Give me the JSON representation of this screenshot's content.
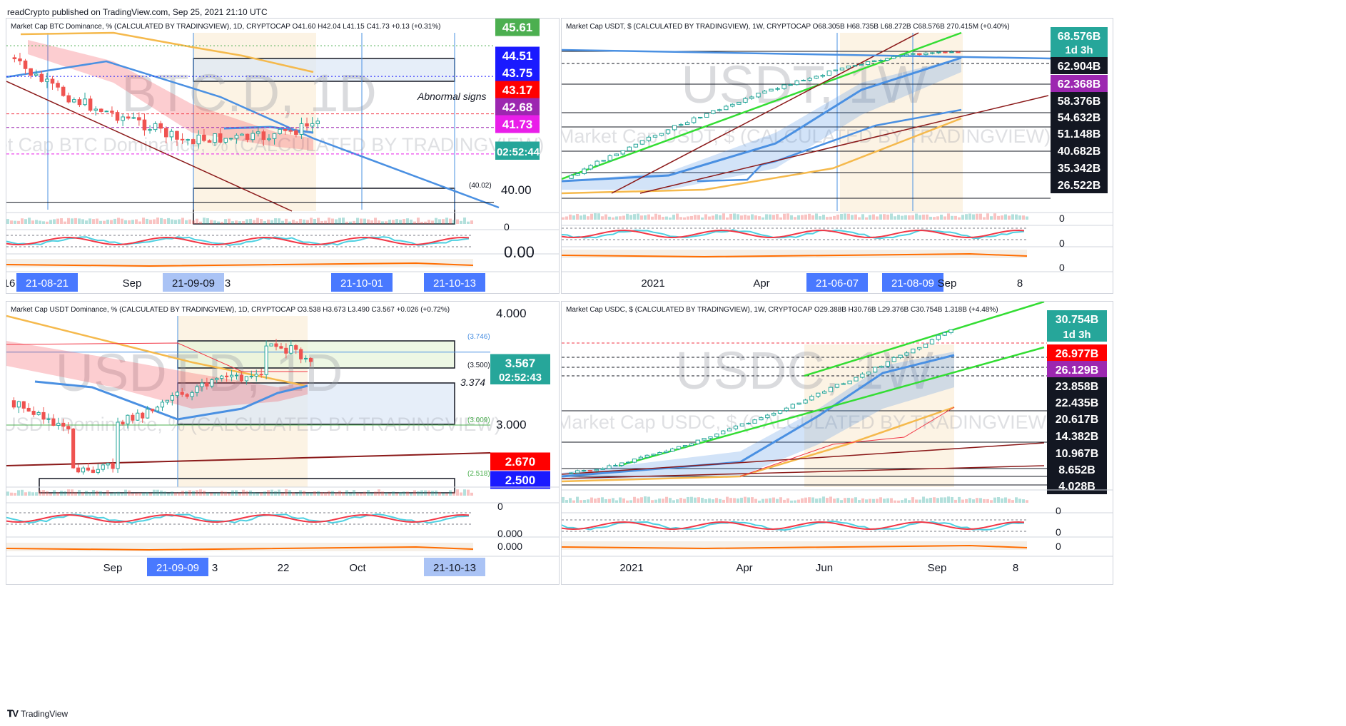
{
  "header": "readCrypto published on TradingView.com, Sep 25, 2021 21:10 UTC",
  "footer": "TradingView",
  "colors": {
    "up": "#26a69a",
    "down": "#ef5350",
    "blue": "#4a90e2",
    "orange": "#f5b94c",
    "red": "#f23645",
    "green": "#33dd33",
    "darkred": "#8b1a1a"
  },
  "chart_data": [
    {
      "id": "btcd",
      "type": "candlestick",
      "title": "Market Cap BTC Dominance, % (CALCULATED BY TRADINGVIEW), 1D, CRYPTOCAP",
      "ohlc_text": "O41.60 H42.04 L41.15 C41.73 +0.13 (+0.31%)",
      "watermark": "BTC.D, 1D",
      "watermark_sub": "Market Cap BTC Dominance, % (CALCULATED BY TRADINGVIEW)",
      "price_labels": [
        {
          "text": "45.61",
          "bg": "#4caf50",
          "fg": "#ffffff",
          "value": 45.61
        },
        {
          "text": "44.51",
          "bg": "#1a1aff",
          "fg": "#ffffff",
          "value": 44.51
        },
        {
          "text": "43.75",
          "bg": "#1a1aff",
          "fg": "#ffffff",
          "value": 43.75
        },
        {
          "text": "43.17",
          "bg": "#ff0000",
          "fg": "#ffffff",
          "value": 43.17
        },
        {
          "text": "42.68",
          "bg": "#9c27b0",
          "fg": "#ffffff",
          "value": 42.68
        },
        {
          "text": "41.73",
          "bg": "#e91ee9",
          "fg": "#ffffff",
          "value": 41.73
        },
        {
          "text": "41.73",
          "bg": "#26a69a",
          "fg": "#ffffff",
          "value": 41.73
        },
        {
          "text": "40.00",
          "bg": "",
          "fg": "#131722",
          "value": 40.0
        }
      ],
      "countdown": "02:52:44",
      "annotations": [
        "Abnormal signs",
        "(40.02)"
      ],
      "ind_labels": [
        "0",
        "0.00"
      ],
      "x_labels": [
        {
          "text": "16",
          "hl": false
        },
        {
          "text": "21-08-21",
          "hl": "dark"
        },
        {
          "text": "Sep",
          "hl": false
        },
        {
          "text": "21-09-09",
          "hl": "light"
        },
        {
          "text": "3",
          "hl": false
        },
        {
          "text": "21-10-01",
          "hl": "dark"
        },
        {
          "text": "21-10-13",
          "hl": "dark"
        }
      ],
      "ylim": [
        39.3,
        46.2
      ]
    },
    {
      "id": "usdt",
      "type": "candlestick",
      "title": "Market Cap USDT, $ (CALCULATED BY TRADINGVIEW), 1W, CRYPTOCAP",
      "ohlc_text": "O68.305B H68.735B L68.272B C68.576B 270.415M (+0.40%)",
      "watermark": "USDT, 1W",
      "watermark_sub": "Market Cap USDT, $ (CALCULATED BY TRADINGVIEW)",
      "price_labels": [
        {
          "text": "68.576B",
          "bg": "#26a69a",
          "fg": "#ffffff",
          "value": 68.576
        },
        {
          "text": "62.904B",
          "bg": "#131722",
          "fg": "#ffffff",
          "value": 62.904
        },
        {
          "text": "62.368B",
          "bg": "#9c27b0",
          "fg": "#ffffff",
          "value": 62.368
        },
        {
          "text": "58.376B",
          "bg": "#131722",
          "fg": "#ffffff",
          "value": 58.376
        },
        {
          "text": "54.632B",
          "bg": "#131722",
          "fg": "#ffffff",
          "value": 54.632
        },
        {
          "text": "51.148B",
          "bg": "#131722",
          "fg": "#ffffff",
          "value": 51.148
        },
        {
          "text": "40.682B",
          "bg": "#131722",
          "fg": "#ffffff",
          "value": 40.682
        },
        {
          "text": "35.342B",
          "bg": "#131722",
          "fg": "#ffffff",
          "value": 35.342
        },
        {
          "text": "26.522B",
          "bg": "#131722",
          "fg": "#ffffff",
          "value": 26.522
        }
      ],
      "countdown": "1d 3h",
      "ind_labels": [
        "0",
        "0",
        "0"
      ],
      "x_labels": [
        {
          "text": "2021",
          "hl": false
        },
        {
          "text": "Apr",
          "hl": false
        },
        {
          "text": "21-06-07",
          "hl": "dark"
        },
        {
          "text": "21-08-09",
          "hl": "dark"
        },
        {
          "text": "Sep",
          "hl": false
        },
        {
          "text": "8",
          "hl": false
        }
      ]
    },
    {
      "id": "usdtd",
      "type": "candlestick",
      "title": "Market Cap USDT Dominance, % (CALCULATED BY TRADINGVIEW), 1D, CRYPTOCAP",
      "ohlc_text": "O3.538 H3.673 L3.490 C3.567 +0.026 (+0.72%)",
      "watermark": "USDT.D, 1D",
      "watermark_sub": "Market Cap USDT Dominance, % (CALCULATED BY TRADINGVIEW)",
      "price_labels": [
        {
          "text": "4.000",
          "bg": "",
          "fg": "#131722",
          "value": 4.0
        },
        {
          "text": "3.567",
          "bg": "#26a69a",
          "fg": "#ffffff",
          "value": 3.567
        },
        {
          "text": "3.000",
          "bg": "",
          "fg": "#131722",
          "value": 3.0
        },
        {
          "text": "2.670",
          "bg": "#ff0000",
          "fg": "#ffffff",
          "value": 2.67
        },
        {
          "text": "2.500",
          "bg": "#1a1aff",
          "fg": "#ffffff",
          "value": 2.5
        }
      ],
      "countdown": "02:52:43",
      "annotations": [
        "(3.746)",
        "(3.500)",
        "3.374",
        "(3.009)",
        "(2.518)"
      ],
      "ind_labels": [
        "0",
        "0.000",
        "0.000"
      ],
      "x_labels": [
        {
          "text": "Sep",
          "hl": false
        },
        {
          "text": "21-09-09",
          "hl": "dark"
        },
        {
          "text": "3",
          "hl": false
        },
        {
          "text": "22",
          "hl": false
        },
        {
          "text": "Oct",
          "hl": false
        },
        {
          "text": "21-10-13",
          "hl": "light"
        }
      ],
      "ylim": [
        2.44,
        4.14
      ]
    },
    {
      "id": "usdc",
      "type": "candlestick",
      "title": "Market Cap USDC, $ (CALCULATED BY TRADINGVIEW), 1W, CRYPTOCAP",
      "ohlc_text": "O29.388B H30.76B L29.376B C30.754B 1.318B (+4.48%)",
      "watermark": "USDC, 1W",
      "watermark_sub": "Market Cap USDC, $ (CALCULATED BY TRADINGVIEW)",
      "price_labels": [
        {
          "text": "30.754B",
          "bg": "#26a69a",
          "fg": "#ffffff",
          "value": 30.754
        },
        {
          "text": "26.977B",
          "bg": "#ff0000",
          "fg": "#ffffff",
          "value": 26.977
        },
        {
          "text": "26.129B",
          "bg": "#9c27b0",
          "fg": "#ffffff",
          "value": 26.129
        },
        {
          "text": "23.858B",
          "bg": "#131722",
          "fg": "#ffffff",
          "value": 23.858
        },
        {
          "text": "22.435B",
          "bg": "#131722",
          "fg": "#ffffff",
          "value": 22.435
        },
        {
          "text": "20.617B",
          "bg": "#131722",
          "fg": "#ffffff",
          "value": 20.617
        },
        {
          "text": "14.382B",
          "bg": "#131722",
          "fg": "#ffffff",
          "value": 14.382
        },
        {
          "text": "10.967B",
          "bg": "#131722",
          "fg": "#ffffff",
          "value": 10.967
        },
        {
          "text": "8.652B",
          "bg": "#131722",
          "fg": "#ffffff",
          "value": 8.652
        },
        {
          "text": "4.028B",
          "bg": "#131722",
          "fg": "#ffffff",
          "value": 4.028
        }
      ],
      "countdown": "1d 3h",
      "ind_labels": [
        "0",
        "0",
        "0"
      ],
      "x_labels": [
        {
          "text": "2021",
          "hl": false
        },
        {
          "text": "Apr",
          "hl": false
        },
        {
          "text": "Jun",
          "hl": false
        },
        {
          "text": "Sep",
          "hl": false
        },
        {
          "text": "8",
          "hl": false
        }
      ]
    }
  ]
}
